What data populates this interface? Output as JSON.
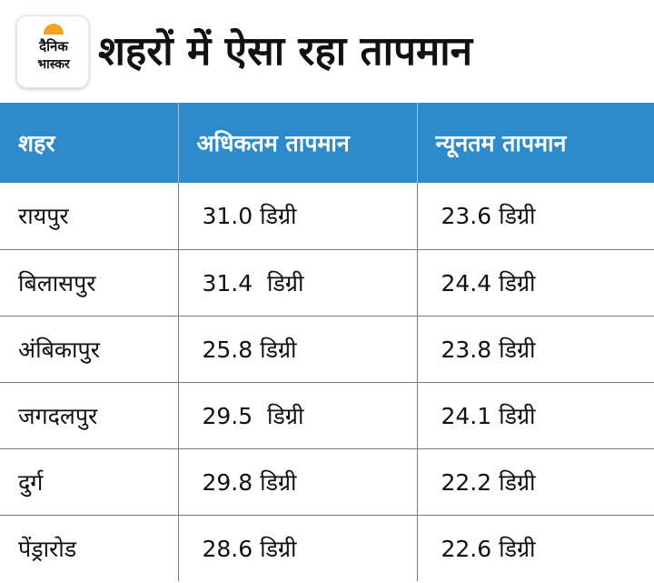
{
  "brand": {
    "line1": "दैनिक",
    "line2": "भास्कर",
    "sun_color": "#f7a21b"
  },
  "title": "शहरों में ऐसा रहा तापमान",
  "table": {
    "header_color": "#2e8bcb",
    "columns": [
      "शहर",
      "अधिकतम तापमान",
      "न्यूनतम तापमान"
    ],
    "rows": [
      {
        "city": "रायपुर",
        "max": "31.0 डिग्री",
        "min": "23.6 डिग्री"
      },
      {
        "city": "बिलासपुर",
        "max": "31.4  डिग्री",
        "min": "24.4 डिग्री"
      },
      {
        "city": "अंबिकापुर",
        "max": "25.8 डिग्री",
        "min": "23.8 डिग्री"
      },
      {
        "city": "जगदलपुर",
        "max": "29.5  डिग्री",
        "min": "24.1 डिग्री"
      },
      {
        "city": "दुर्ग",
        "max": "29.8 डिग्री",
        "min": "22.2 डिग्री"
      },
      {
        "city": "पेंड्रारोड",
        "max": "28.6 डिग्री",
        "min": "22.6 डिग्री"
      }
    ]
  }
}
